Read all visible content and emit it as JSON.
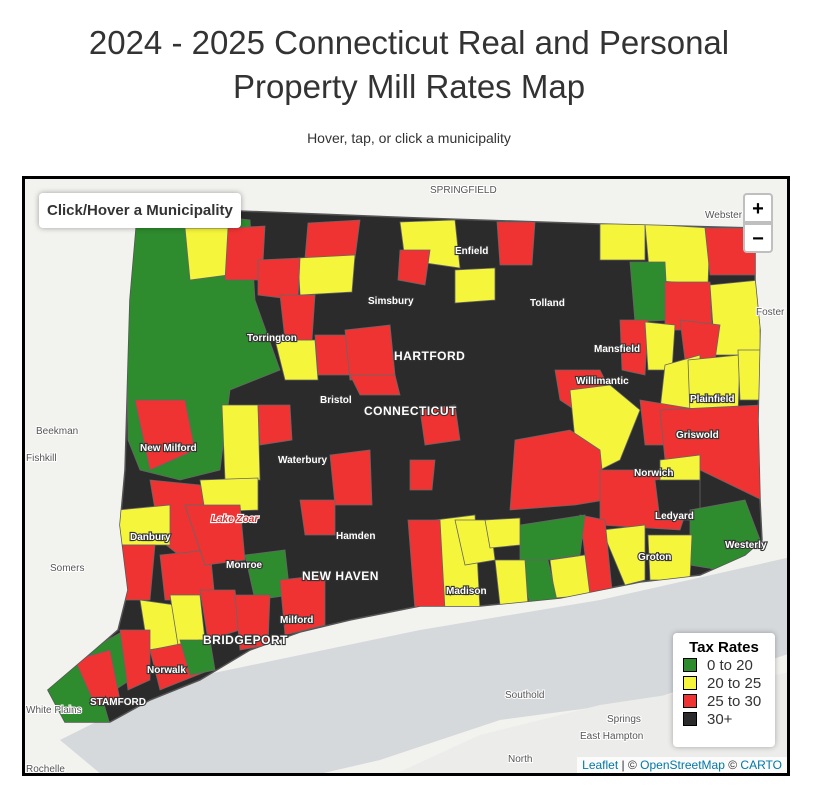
{
  "header": {
    "title_line1": "2024 - 2025 Connecticut Real and Personal",
    "title_line2": "Property Mill Rates Map",
    "subtitle": "Hover, tap, or click a municipality"
  },
  "map": {
    "info": "Click/Hover a Municipality",
    "zoom_in": "+",
    "zoom_out": "−",
    "labels": [
      "SPRINGFIELD",
      "Webster",
      "Enfield",
      "Simsbury",
      "Tolland",
      "Foster",
      "Torrington",
      "HARTFORD",
      "Mansfield",
      "Willimantic",
      "Plainfield",
      "Bristol",
      "CONNECTICUT",
      "Beekman",
      "New Milford",
      "Griswold",
      "Fishkill",
      "Waterbury",
      "Norwich",
      "Ledyard",
      "Lake Zoar",
      "Danbury",
      "Hamden",
      "Westerly",
      "Monroe",
      "Groton",
      "Somers",
      "NEW HAVEN",
      "Madison",
      "Milford",
      "BRIDGEPORT",
      "Norwalk",
      "STAMFORD",
      "Southold",
      "White Plains",
      "Springs",
      "East Hampton",
      "North",
      "Rochelle"
    ],
    "legend": {
      "title": "Tax Rates",
      "items": [
        {
          "label": "0 to 20",
          "color": "#2e8b2e"
        },
        {
          "label": "20 to 25",
          "color": "#f5f53c"
        },
        {
          "label": "25 to 30",
          "color": "#ef3333"
        },
        {
          "label": "30+",
          "color": "#2b2b2b"
        }
      ]
    },
    "attribution": {
      "leaflet": "Leaflet",
      "sep1": "| ©",
      "osm": "OpenStreetMap",
      "sep2": "©",
      "carto": "CARTO"
    }
  }
}
